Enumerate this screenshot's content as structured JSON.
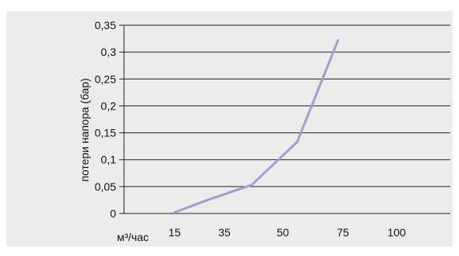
{
  "header_fragment": "",
  "chart_data": {
    "type": "line",
    "x": [
      15,
      35,
      50,
      75,
      100
    ],
    "x_tick_labels": [
      "15",
      "35",
      "50",
      "75",
      "100"
    ],
    "y_tick_labels": [
      "0",
      "0,05",
      "0,1",
      "0,15",
      "0,2",
      "0,25",
      "0,3",
      "0,35"
    ],
    "y_ticks": [
      0,
      0.05,
      0.1,
      0.15,
      0.2,
      0.25,
      0.3,
      0.35
    ],
    "ylim": [
      0,
      0.35
    ],
    "series": [
      {
        "points": [
          {
            "x": 15,
            "y": 0.002
          },
          {
            "x": 27,
            "y": 0.023
          },
          {
            "x": 42,
            "y": 0.053
          },
          {
            "x": 56,
            "y": 0.133
          },
          {
            "x": 73,
            "y": 0.322
          }
        ]
      }
    ],
    "xlabel": "м³/час",
    "ylabel": "потери напора (бар)",
    "grid": "horizontal",
    "line_color": "#a79ccc",
    "grid_color": "#222222",
    "background": "#ececec"
  }
}
